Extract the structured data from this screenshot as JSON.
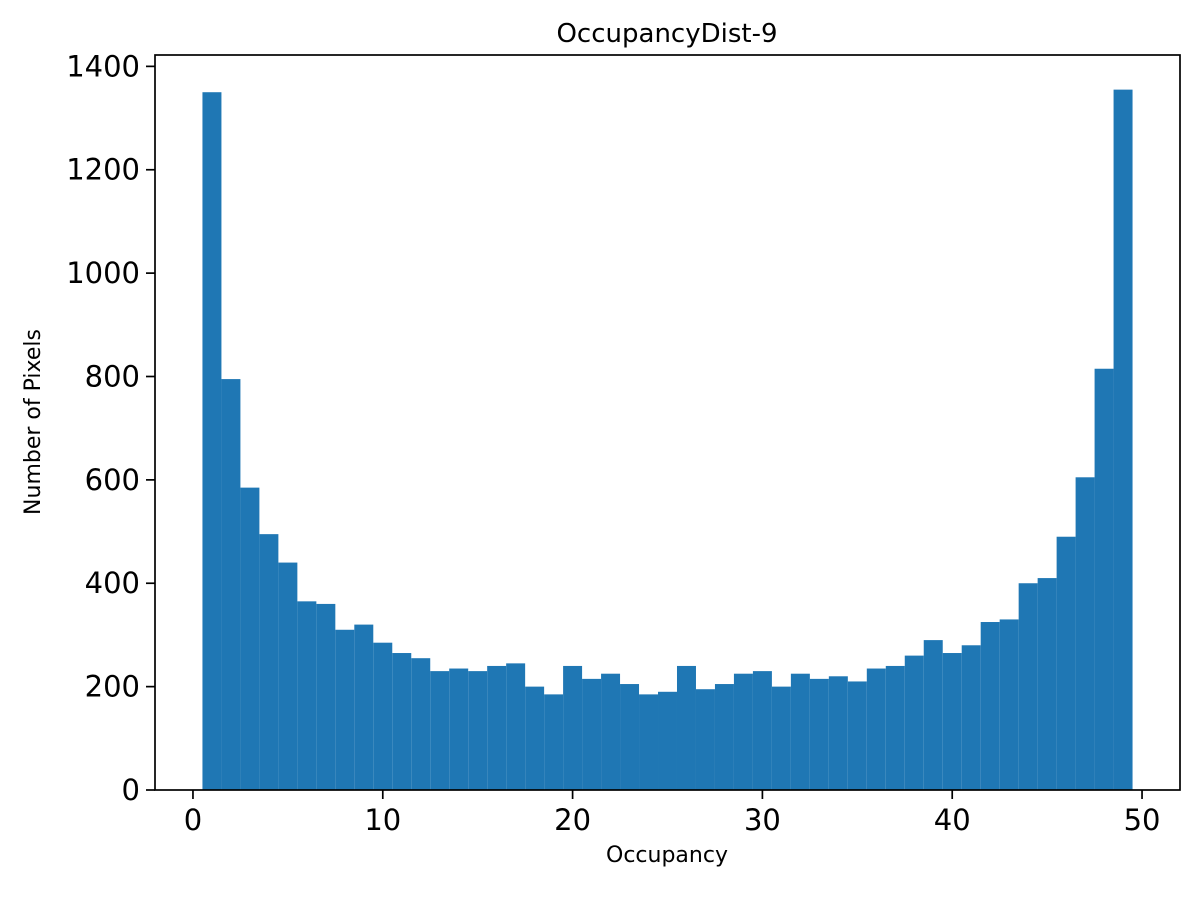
{
  "chart_data": {
    "type": "bar",
    "title": "OccupancyDist-9",
    "xlabel": "Occupancy",
    "ylabel": "Number of Pixels",
    "xlim": [
      -2,
      52
    ],
    "ylim": [
      0,
      1422
    ],
    "xticks": [
      0,
      10,
      20,
      30,
      40,
      50
    ],
    "yticks": [
      0,
      200,
      400,
      600,
      800,
      1000,
      1200,
      1400
    ],
    "bar_color": "#1f77b4",
    "bin_start": 0.5,
    "bin_width": 1,
    "values": [
      1350,
      795,
      585,
      495,
      440,
      365,
      360,
      310,
      320,
      285,
      265,
      255,
      230,
      235,
      230,
      240,
      245,
      200,
      185,
      240,
      215,
      225,
      205,
      185,
      190,
      240,
      195,
      205,
      225,
      230,
      200,
      225,
      215,
      220,
      210,
      235,
      240,
      260,
      290,
      265,
      280,
      325,
      330,
      400,
      410,
      490,
      605,
      815,
      1355
    ],
    "legend": null,
    "grid": false
  }
}
